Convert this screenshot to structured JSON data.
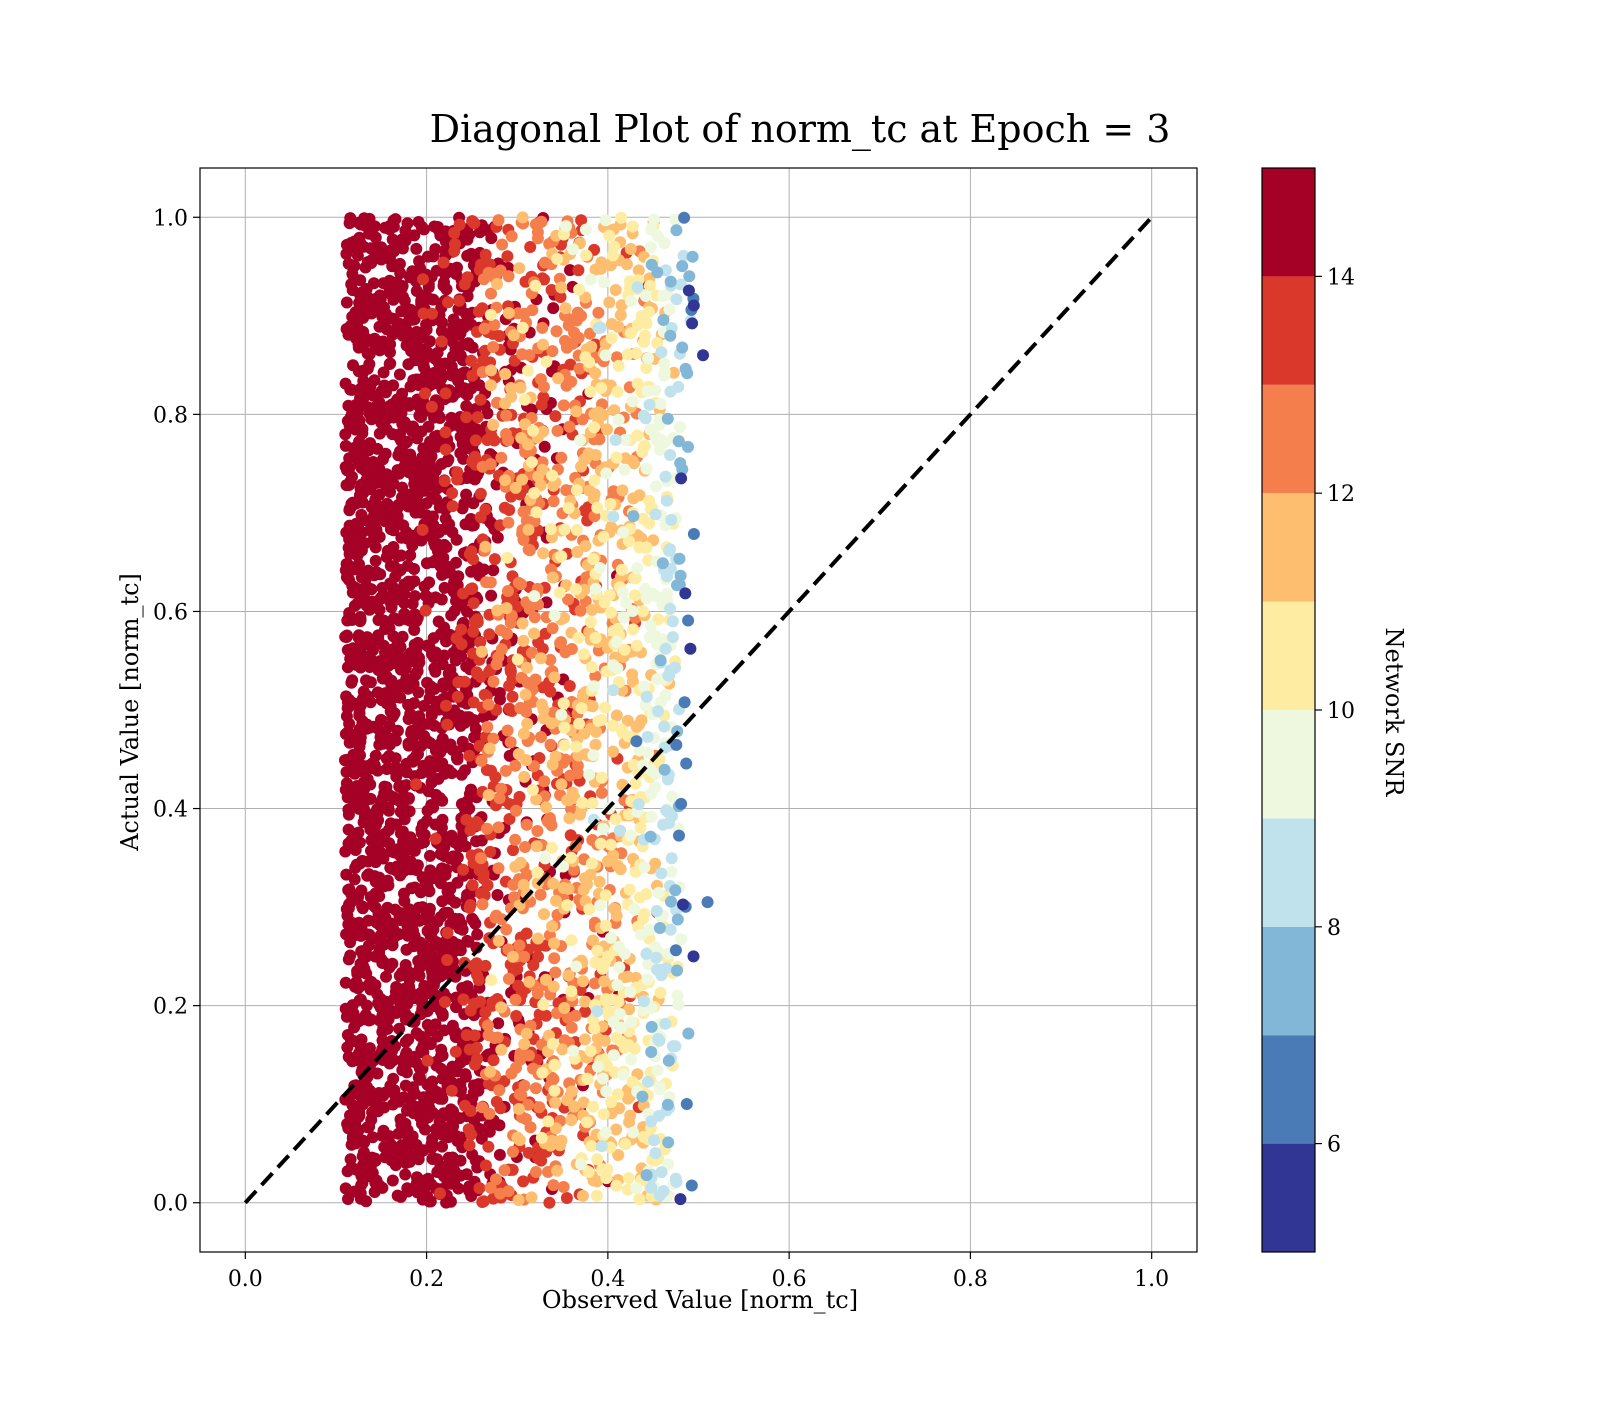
{
  "chart_data": {
    "type": "scatter",
    "title": "Diagonal Plot of norm_tc at Epoch = 3",
    "xlabel": "Observed Value [norm_tc]",
    "ylabel": "Actual Value [norm_tc]",
    "xlim": [
      -0.05,
      1.05
    ],
    "ylim": [
      -0.05,
      1.05
    ],
    "x_ticks": [
      "0.0",
      "0.2",
      "0.4",
      "0.6",
      "0.8",
      "1.0"
    ],
    "y_ticks": [
      "0.0",
      "0.2",
      "0.4",
      "0.6",
      "0.8",
      "1.0"
    ],
    "grid": true,
    "reference_line": {
      "style": "dashed",
      "color": "#000000",
      "from": [
        0,
        0
      ],
      "to": [
        1,
        1
      ]
    },
    "colorbar": {
      "label": "Network SNR",
      "range": [
        5,
        15
      ],
      "ticks": [
        "6",
        "8",
        "10",
        "12",
        "14"
      ],
      "bins": [
        {
          "from": 5,
          "to": 6,
          "color": "#313695"
        },
        {
          "from": 6,
          "to": 7,
          "color": "#4a7bb7"
        },
        {
          "from": 7,
          "to": 8,
          "color": "#82b7d7"
        },
        {
          "from": 8,
          "to": 9,
          "color": "#c0e2ec"
        },
        {
          "from": 9,
          "to": 10,
          "color": "#edf8df"
        },
        {
          "from": 10,
          "to": 11,
          "color": "#feeca2"
        },
        {
          "from": 11,
          "to": 12,
          "color": "#fdbe70"
        },
        {
          "from": 12,
          "to": 13,
          "color": "#f47f4d"
        },
        {
          "from": 13,
          "to": 14,
          "color": "#da382a"
        },
        {
          "from": 14,
          "to": 15,
          "color": "#a50026"
        }
      ]
    },
    "point_cloud": {
      "x_range": [
        0.11,
        0.51
      ],
      "y_range": [
        0.0,
        1.0
      ],
      "snr_vs_x": [
        {
          "x": 0.15,
          "snr": 14.8
        },
        {
          "x": 0.25,
          "snr": 14.2
        },
        {
          "x": 0.3,
          "snr": 13.2
        },
        {
          "x": 0.35,
          "snr": 12.3
        },
        {
          "x": 0.4,
          "snr": 11.4
        },
        {
          "x": 0.44,
          "snr": 10.6
        },
        {
          "x": 0.47,
          "snr": 9.0
        },
        {
          "x": 0.49,
          "snr": 6.5
        }
      ],
      "outliers": [
        {
          "x": 0.51,
          "y": 0.305,
          "snr": 6.5
        },
        {
          "x": 0.505,
          "y": 0.86,
          "snr": 5.5
        }
      ]
    }
  }
}
